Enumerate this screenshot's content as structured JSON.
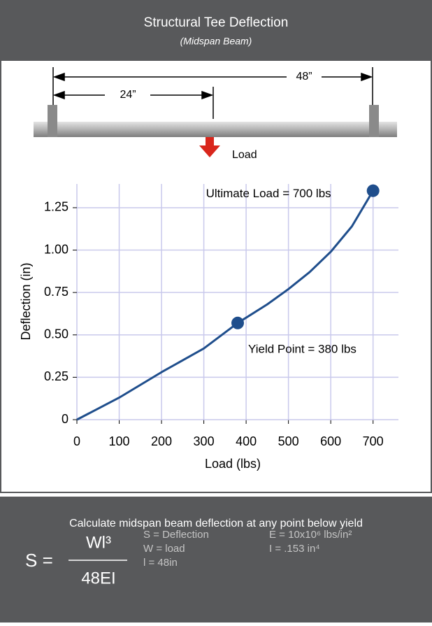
{
  "header": {
    "title": "Structural Tee Deflection",
    "subtitle": "(Midspan Beam)"
  },
  "diagram": {
    "span_total": "48”",
    "span_half": "24”",
    "load_label": "Load"
  },
  "chart_data": {
    "type": "line",
    "x": [
      0,
      100,
      200,
      300,
      380,
      450,
      500,
      550,
      600,
      650,
      700
    ],
    "values": [
      0,
      0.13,
      0.28,
      0.42,
      0.57,
      0.68,
      0.77,
      0.87,
      0.99,
      1.14,
      1.35
    ],
    "color": "#1f4e8c",
    "xlabel": "Load (lbs)",
    "ylabel": "Deflection (in)",
    "xlim": [
      0,
      760
    ],
    "ylim": [
      0,
      1.39
    ],
    "xticks": [
      0,
      100,
      200,
      300,
      400,
      500,
      600,
      700
    ],
    "yticks": [
      0,
      0.25,
      {
        "value": 0.5,
        "label": "0.50"
      },
      0.75,
      {
        "value": 1,
        "label": "1.00"
      },
      1.25
    ],
    "grid": true,
    "grid_color": "#c9c9ec",
    "annotations": [
      {
        "x": 700,
        "y": 1.35,
        "text": "Ultimate Load = 700 lbs"
      },
      {
        "x": 380,
        "y": 0.57,
        "text": "Yield Point = 380 lbs"
      }
    ]
  },
  "formula": {
    "intro": "Calculate midspan beam deflection at any point below yield",
    "lhs": "S =",
    "numerator": "Wl³",
    "denominator": "48EI",
    "definitions": [
      "S = Deflection",
      "W = load",
      "l = 48in",
      "E = 10x10⁶ lbs/in²",
      "I = .153 in⁴"
    ]
  }
}
